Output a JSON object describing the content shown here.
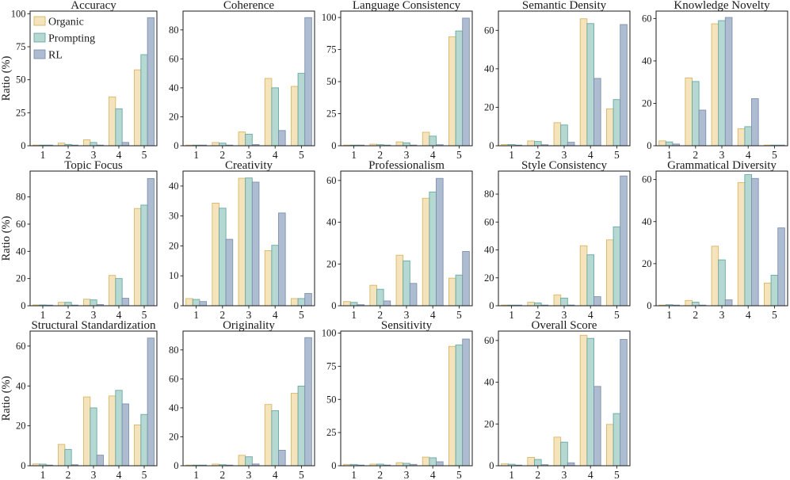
{
  "figure": {
    "ylabel": "Ratio (%)",
    "background": "#ffffff",
    "axis_color": "#1a1a1a",
    "legend": {
      "position": "upper-left-inside-first-subplot",
      "entries": [
        "Organic",
        "Prompting",
        "RL"
      ]
    },
    "series_styles": [
      {
        "name": "Organic",
        "fill": "#F5E3BC",
        "edge": "#D8B767"
      },
      {
        "name": "Prompting",
        "fill": "#B6D8D2",
        "edge": "#66A9A2"
      },
      {
        "name": "RL",
        "fill": "#AEBCD2",
        "edge": "#7E90AE"
      }
    ]
  },
  "chart_data": [
    {
      "type": "bar",
      "title": "Accuracy",
      "categories": [
        "1",
        "2",
        "3",
        "4",
        "5"
      ],
      "yticks": [
        0,
        25,
        50,
        75,
        100
      ],
      "ylim": [
        0,
        102
      ],
      "show_ylabel": true,
      "legend": true,
      "series": [
        {
          "name": "Organic",
          "values": [
            0.5,
            2.0,
            4.5,
            37.0,
            57.5
          ]
        },
        {
          "name": "Prompting",
          "values": [
            0.4,
            1.0,
            2.5,
            28.0,
            69.0
          ]
        },
        {
          "name": "RL",
          "values": [
            0.1,
            0.2,
            0.4,
            2.5,
            97.0
          ]
        }
      ]
    },
    {
      "type": "bar",
      "title": "Coherence",
      "categories": [
        "1",
        "2",
        "3",
        "4",
        "5"
      ],
      "yticks": [
        0,
        20,
        40,
        60,
        80
      ],
      "ylim": [
        0,
        93
      ],
      "show_ylabel": false,
      "legend": false,
      "series": [
        {
          "name": "Organic",
          "values": [
            0.4,
            2.2,
            9.5,
            46.5,
            41.0
          ]
        },
        {
          "name": "Prompting",
          "values": [
            0.3,
            1.8,
            8.0,
            40.0,
            50.0
          ]
        },
        {
          "name": "RL",
          "values": [
            0.1,
            0.3,
            0.8,
            10.5,
            88.5
          ]
        }
      ]
    },
    {
      "type": "bar",
      "title": "Language Consistency",
      "categories": [
        "1",
        "2",
        "3",
        "4",
        "5"
      ],
      "yticks": [
        0,
        25,
        50,
        75,
        100
      ],
      "ylim": [
        0,
        105
      ],
      "show_ylabel": false,
      "legend": false,
      "series": [
        {
          "name": "Organic",
          "values": [
            0.4,
            1.2,
            3.0,
            10.5,
            85.0
          ]
        },
        {
          "name": "Prompting",
          "values": [
            0.3,
            0.8,
            2.3,
            7.5,
            89.5
          ]
        },
        {
          "name": "RL",
          "values": [
            0.1,
            0.1,
            0.5,
            0.8,
            99.5
          ]
        }
      ]
    },
    {
      "type": "bar",
      "title": "Semantic Density",
      "categories": [
        "1",
        "2",
        "3",
        "4",
        "5"
      ],
      "yticks": [
        0,
        20,
        40,
        60
      ],
      "ylim": [
        0,
        70
      ],
      "show_ylabel": false,
      "legend": false,
      "series": [
        {
          "name": "Organic",
          "values": [
            0.6,
            2.5,
            12.0,
            66.0,
            19.2
          ]
        },
        {
          "name": "Prompting",
          "values": [
            0.6,
            2.2,
            10.8,
            63.5,
            24.0
          ]
        },
        {
          "name": "RL",
          "values": [
            0.1,
            0.5,
            1.8,
            35.0,
            63.0
          ]
        }
      ]
    },
    {
      "type": "bar",
      "title": "Knowledge Novelty",
      "categories": [
        "1",
        "2",
        "3",
        "4",
        "5"
      ],
      "yticks": [
        0,
        20,
        40,
        60
      ],
      "ylim": [
        0,
        63.5
      ],
      "show_ylabel": false,
      "legend": false,
      "series": [
        {
          "name": "Organic",
          "values": [
            2.3,
            32.0,
            57.5,
            8.0,
            0.2
          ]
        },
        {
          "name": "Prompting",
          "values": [
            1.8,
            30.3,
            59.0,
            9.0,
            0.2
          ]
        },
        {
          "name": "RL",
          "values": [
            0.8,
            16.8,
            60.5,
            22.2,
            0.3
          ]
        }
      ]
    },
    {
      "type": "bar",
      "title": "Topic Focus",
      "categories": [
        "1",
        "2",
        "3",
        "4",
        "5"
      ],
      "yticks": [
        0,
        20,
        40,
        60,
        80
      ],
      "ylim": [
        0,
        99
      ],
      "show_ylabel": true,
      "legend": false,
      "series": [
        {
          "name": "Organic",
          "values": [
            0.6,
            2.5,
            4.8,
            22.3,
            71.5
          ]
        },
        {
          "name": "Prompting",
          "values": [
            0.6,
            2.5,
            4.3,
            20.0,
            74.0
          ]
        },
        {
          "name": "RL",
          "values": [
            0.1,
            0.4,
            0.9,
            5.5,
            93.5
          ]
        }
      ]
    },
    {
      "type": "bar",
      "title": "Creativity",
      "categories": [
        "1",
        "2",
        "3",
        "4",
        "5"
      ],
      "yticks": [
        0,
        10,
        20,
        30,
        40
      ],
      "ylim": [
        0,
        45
      ],
      "show_ylabel": false,
      "legend": false,
      "series": [
        {
          "name": "Organic",
          "values": [
            2.4,
            34.3,
            42.6,
            18.4,
            2.4
          ]
        },
        {
          "name": "Prompting",
          "values": [
            2.1,
            32.6,
            42.7,
            20.2,
            2.4
          ]
        },
        {
          "name": "RL",
          "values": [
            1.4,
            22.2,
            41.3,
            31.0,
            4.1
          ]
        }
      ]
    },
    {
      "type": "bar",
      "title": "Professionalism",
      "categories": [
        "1",
        "2",
        "3",
        "4",
        "5"
      ],
      "yticks": [
        0,
        20,
        40,
        60
      ],
      "ylim": [
        0,
        64.5
      ],
      "show_ylabel": false,
      "legend": false,
      "series": [
        {
          "name": "Organic",
          "values": [
            2.0,
            9.8,
            24.2,
            51.5,
            13.2
          ]
        },
        {
          "name": "Prompting",
          "values": [
            1.6,
            7.9,
            21.5,
            54.5,
            14.7
          ]
        },
        {
          "name": "RL",
          "values": [
            0.5,
            2.3,
            10.7,
            61.0,
            26.0
          ]
        }
      ]
    },
    {
      "type": "bar",
      "title": "Style Consistency",
      "categories": [
        "1",
        "2",
        "3",
        "4",
        "5"
      ],
      "yticks": [
        0,
        20,
        40,
        60,
        80
      ],
      "ylim": [
        0,
        96.5
      ],
      "show_ylabel": false,
      "legend": false,
      "series": [
        {
          "name": "Organic",
          "values": [
            0.5,
            2.5,
            7.8,
            43.0,
            47.2
          ]
        },
        {
          "name": "Prompting",
          "values": [
            0.4,
            2.0,
            5.5,
            36.5,
            56.5
          ]
        },
        {
          "name": "RL",
          "values": [
            0.1,
            0.2,
            0.5,
            6.5,
            93.0
          ]
        }
      ]
    },
    {
      "type": "bar",
      "title": "Grammatical Diversity",
      "categories": [
        "1",
        "2",
        "3",
        "4",
        "5"
      ],
      "yticks": [
        0,
        20,
        40,
        60
      ],
      "ylim": [
        0,
        64
      ],
      "show_ylabel": false,
      "legend": false,
      "series": [
        {
          "name": "Organic",
          "values": [
            0.3,
            2.5,
            28.3,
            58.5,
            10.8
          ]
        },
        {
          "name": "Prompting",
          "values": [
            0.5,
            1.7,
            21.8,
            62.3,
            14.5
          ]
        },
        {
          "name": "RL",
          "values": [
            0.1,
            0.1,
            2.8,
            60.5,
            37.0
          ]
        }
      ]
    },
    {
      "type": "bar",
      "title": "Structural Standardization",
      "categories": [
        "1",
        "2",
        "3",
        "4",
        "5"
      ],
      "yticks": [
        0,
        20,
        40,
        60
      ],
      "ylim": [
        0,
        67.5
      ],
      "show_ylabel": true,
      "legend": false,
      "series": [
        {
          "name": "Organic",
          "values": [
            0.9,
            10.7,
            34.5,
            35.0,
            20.5
          ]
        },
        {
          "name": "Prompting",
          "values": [
            0.8,
            8.2,
            29.0,
            37.8,
            25.7
          ]
        },
        {
          "name": "RL",
          "values": [
            0.1,
            0.5,
            5.3,
            31.0,
            64.0
          ]
        }
      ]
    },
    {
      "type": "bar",
      "title": "Originality",
      "categories": [
        "1",
        "2",
        "3",
        "4",
        "5"
      ],
      "yticks": [
        0,
        20,
        40,
        60,
        80
      ],
      "ylim": [
        0,
        93
      ],
      "show_ylabel": false,
      "legend": false,
      "series": [
        {
          "name": "Organic",
          "values": [
            0.2,
            1.1,
            7.2,
            42.3,
            50.0
          ]
        },
        {
          "name": "Prompting",
          "values": [
            0.3,
            0.7,
            6.2,
            38.0,
            55.0
          ]
        },
        {
          "name": "RL",
          "values": [
            0.1,
            0.3,
            1.2,
            10.7,
            88.5
          ]
        }
      ]
    },
    {
      "type": "bar",
      "title": "Sensitivity",
      "categories": [
        "1",
        "2",
        "3",
        "4",
        "5"
      ],
      "yticks": [
        0,
        25,
        50,
        75,
        100
      ],
      "ylim": [
        0,
        101.5
      ],
      "show_ylabel": false,
      "legend": false,
      "series": [
        {
          "name": "Organic",
          "values": [
            1.0,
            1.2,
            2.3,
            6.5,
            90.0
          ]
        },
        {
          "name": "Prompting",
          "values": [
            1.0,
            1.2,
            1.8,
            6.0,
            91.0
          ]
        },
        {
          "name": "RL",
          "values": [
            0.5,
            0.5,
            1.0,
            3.0,
            95.5
          ]
        }
      ]
    },
    {
      "type": "bar",
      "title": "Overall Score",
      "categories": [
        "1",
        "2",
        "3",
        "4",
        "5"
      ],
      "yticks": [
        0,
        20,
        40,
        60
      ],
      "ylim": [
        0,
        64.5
      ],
      "show_ylabel": false,
      "legend": false,
      "series": [
        {
          "name": "Organic",
          "values": [
            0.9,
            4.0,
            13.7,
            62.5,
            19.8
          ]
        },
        {
          "name": "Prompting",
          "values": [
            0.7,
            3.0,
            11.3,
            61.0,
            25.0
          ]
        },
        {
          "name": "RL",
          "values": [
            0.1,
            0.5,
            1.4,
            38.0,
            60.5
          ]
        }
      ]
    }
  ]
}
